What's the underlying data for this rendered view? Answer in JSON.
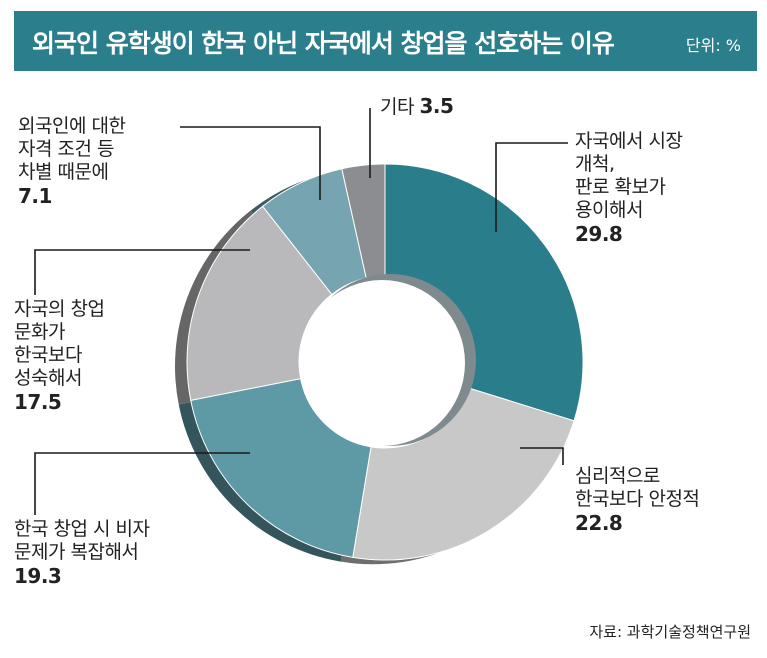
{
  "header": {
    "title": "외국인 유학생이 한국 아닌 자국에서 창업을 선호하는 이유",
    "unit": "단위: %"
  },
  "source": "자료: 과학기술정책연구원",
  "colors": {
    "title_bg": "#2b7f8c",
    "slices": [
      "#2a7e8b",
      "#c8c8c8",
      "#5e9aa6",
      "#b9b9bb",
      "#77a4b1",
      "#8c8d91"
    ]
  },
  "chart_data": {
    "type": "pie",
    "style": "donut",
    "title": "외국인 유학생이 한국 아닌 자국에서 창업을 선호하는 이유",
    "unit": "%",
    "slices": [
      {
        "label_lines": [
          "자국에서 시장",
          "개척,",
          "판로 확보가",
          "용이해서"
        ],
        "value": 29.8
      },
      {
        "label_lines": [
          "심리적으로",
          "한국보다 안정적"
        ],
        "value": 22.8
      },
      {
        "label_lines": [
          "한국 창업 시 비자",
          "문제가 복잡해서"
        ],
        "value": 19.3
      },
      {
        "label_lines": [
          "자국의 창업",
          "문화가",
          "한국보다",
          "성숙해서"
        ],
        "value": 17.5
      },
      {
        "label_lines": [
          "외국인에 대한",
          "자격 조건 등",
          "차별 때문에"
        ],
        "value": 7.1
      },
      {
        "label_lines": [
          "기타"
        ],
        "value": 3.5,
        "inline": true
      }
    ]
  }
}
